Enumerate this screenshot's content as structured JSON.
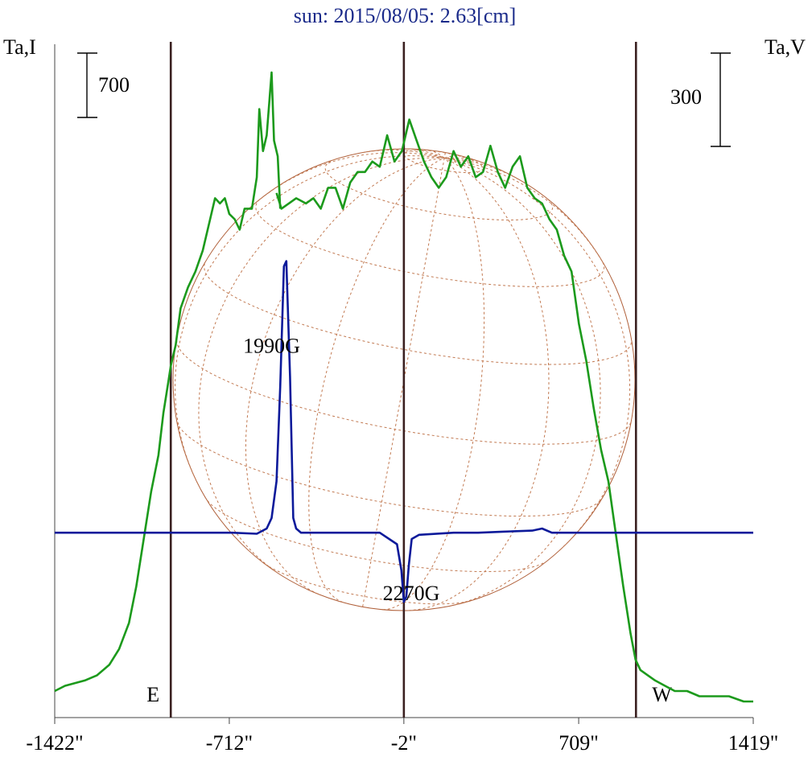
{
  "chart_data": {
    "type": "line",
    "title": "sun: 2015/08/05: 2.63[cm]",
    "left_axis_label": "Ta,I",
    "right_axis_label": "Ta,V",
    "left_scale_bar_label": "700",
    "right_scale_bar_label": "300",
    "x_ticks": [
      {
        "value": -1422,
        "label": "-1422\""
      },
      {
        "value": -712,
        "label": "-712\""
      },
      {
        "value": -2,
        "label": "-2\""
      },
      {
        "value": 709,
        "label": "709\""
      },
      {
        "value": 1419,
        "label": "1419\""
      }
    ],
    "xlim": [
      -1422,
      1419
    ],
    "vertical_markers": [
      {
        "value": -950,
        "label": "E"
      },
      {
        "value": -2,
        "label": ""
      },
      {
        "value": 942,
        "label": "W"
      }
    ],
    "annotations": [
      {
        "text": "1990G",
        "x": -540,
        "y": 0.665
      },
      {
        "text": "2270G",
        "x": 28,
        "y": 0.193
      }
    ],
    "series": [
      {
        "key": "I",
        "color": "#1c9a1c",
        "x": [
          -1422,
          -1380,
          -1300,
          -1250,
          -1200,
          -1160,
          -1120,
          -1090,
          -1060,
          -1030,
          -1000,
          -980,
          -960,
          -950,
          -930,
          -910,
          -880,
          -850,
          -820,
          -790,
          -770,
          -750,
          -730,
          -712,
          -690,
          -670,
          -650,
          -620,
          -600,
          -590,
          -575,
          -560,
          -540,
          -530,
          -515,
          -505
        ],
        "y": [
          0.02,
          0.03,
          0.04,
          0.05,
          0.07,
          0.1,
          0.15,
          0.22,
          0.31,
          0.4,
          0.47,
          0.55,
          0.61,
          0.64,
          0.68,
          0.75,
          0.79,
          0.82,
          0.86,
          0.92,
          0.96,
          0.95,
          0.96,
          0.93,
          0.92,
          0.9,
          0.94,
          0.94,
          1.0,
          1.13,
          1.05,
          1.08,
          1.2,
          1.07,
          1.04,
          0.94
        ]
      },
      {
        "key": "I_cont",
        "color": "#1c9a1c",
        "x": [
          -520,
          -500,
          -470,
          -440,
          -400,
          -370,
          -340,
          -310,
          -280,
          -250,
          -220,
          -190,
          -160,
          -130,
          -100,
          -70,
          -40,
          -10,
          20,
          50,
          80,
          110,
          140,
          170,
          200,
          230,
          260,
          290,
          320,
          350,
          380,
          410,
          440,
          470,
          500,
          530,
          560,
          590,
          620,
          650,
          680,
          710,
          740,
          770,
          800,
          830,
          860,
          890,
          920,
          940,
          960,
          990,
          1020,
          1060,
          1100,
          1150,
          1200,
          1260,
          1320,
          1380,
          1419
        ],
        "y": [
          0.97,
          0.94,
          0.95,
          0.96,
          0.95,
          0.96,
          0.94,
          0.98,
          0.98,
          0.94,
          0.99,
          1.01,
          1.01,
          1.03,
          1.02,
          1.08,
          1.03,
          1.05,
          1.11,
          1.07,
          1.03,
          1.0,
          0.98,
          1.0,
          1.05,
          1.02,
          1.04,
          1.0,
          1.01,
          1.06,
          1.01,
          0.98,
          1.02,
          1.04,
          0.98,
          0.96,
          0.95,
          0.92,
          0.9,
          0.85,
          0.82,
          0.72,
          0.65,
          0.56,
          0.48,
          0.42,
          0.32,
          0.22,
          0.13,
          0.08,
          0.06,
          0.05,
          0.04,
          0.03,
          0.02,
          0.02,
          0.01,
          0.01,
          0.01,
          0.0,
          0.0
        ]
      },
      {
        "key": "V",
        "color": "#0c1a9a",
        "x": [
          -1422,
          -1000,
          -950,
          -700,
          -600,
          -560,
          -540,
          -520,
          -505,
          -490,
          -480,
          -465,
          -452,
          -440,
          -420,
          -380,
          -300,
          -100,
          -30,
          -12,
          -2,
          8,
          18,
          30,
          60,
          200,
          300,
          400,
          520,
          560,
          600,
          700,
          900,
          1200,
          1419
        ],
        "y": [
          0.322,
          0.322,
          0.322,
          0.322,
          0.32,
          0.33,
          0.35,
          0.42,
          0.6,
          0.83,
          0.84,
          0.62,
          0.35,
          0.33,
          0.322,
          0.322,
          0.322,
          0.322,
          0.3,
          0.25,
          0.19,
          0.2,
          0.26,
          0.31,
          0.318,
          0.322,
          0.322,
          0.324,
          0.326,
          0.33,
          0.322,
          0.322,
          0.322,
          0.322,
          0.322
        ]
      }
    ]
  }
}
